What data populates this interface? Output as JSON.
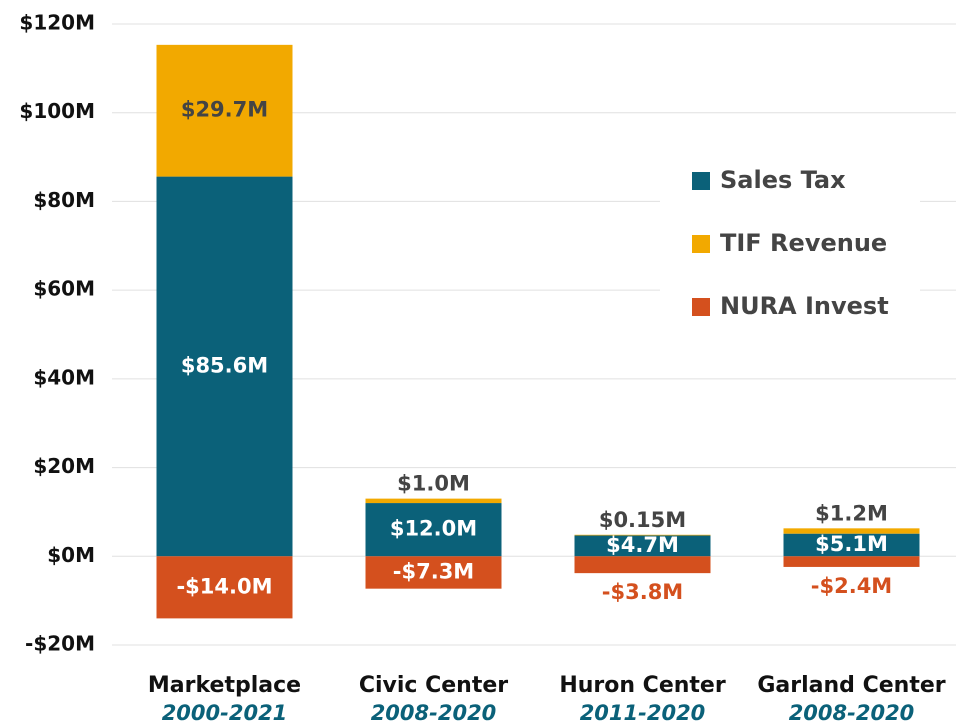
{
  "chart_data": {
    "type": "stacked_bar",
    "categories": [
      "Marketplace",
      "Civic Center",
      "Huron Center",
      "Garland Center"
    ],
    "periods": [
      "2000-2021",
      "2008-2020",
      "2011-2020",
      "2008-2020"
    ],
    "series": [
      {
        "name": "Sales Tax",
        "color": "#0b6179",
        "values": [
          85.6,
          12.0,
          4.7,
          5.1
        ],
        "value_labels": [
          "$85.6M",
          "$12.0M",
          "$4.7M",
          "$5.1M"
        ]
      },
      {
        "name": "TIF Revenue",
        "color": "#f2a900",
        "values": [
          29.7,
          1.0,
          0.15,
          1.2
        ],
        "value_labels": [
          "$29.7M",
          "$1.0M",
          "$0.15M",
          "$1.2M"
        ]
      },
      {
        "name": "NURA Invest",
        "color": "#d4501e",
        "values": [
          -14.0,
          -7.3,
          -3.8,
          -2.4
        ],
        "value_labels": [
          "-$14.0M",
          "-$7.3M",
          "-$3.8M",
          "-$2.4M"
        ]
      }
    ],
    "ylim": [
      -20,
      120
    ],
    "yticks": [
      {
        "value": -20,
        "label": "-$20M"
      },
      {
        "value": 0,
        "label": "$0M"
      },
      {
        "value": 20,
        "label": "$20M"
      },
      {
        "value": 40,
        "label": "$40M"
      },
      {
        "value": 60,
        "label": "$60M"
      },
      {
        "value": 80,
        "label": "$80M"
      },
      {
        "value": 100,
        "label": "$100M"
      },
      {
        "value": 120,
        "label": "$120M"
      }
    ],
    "grid": true,
    "legend": "right"
  }
}
